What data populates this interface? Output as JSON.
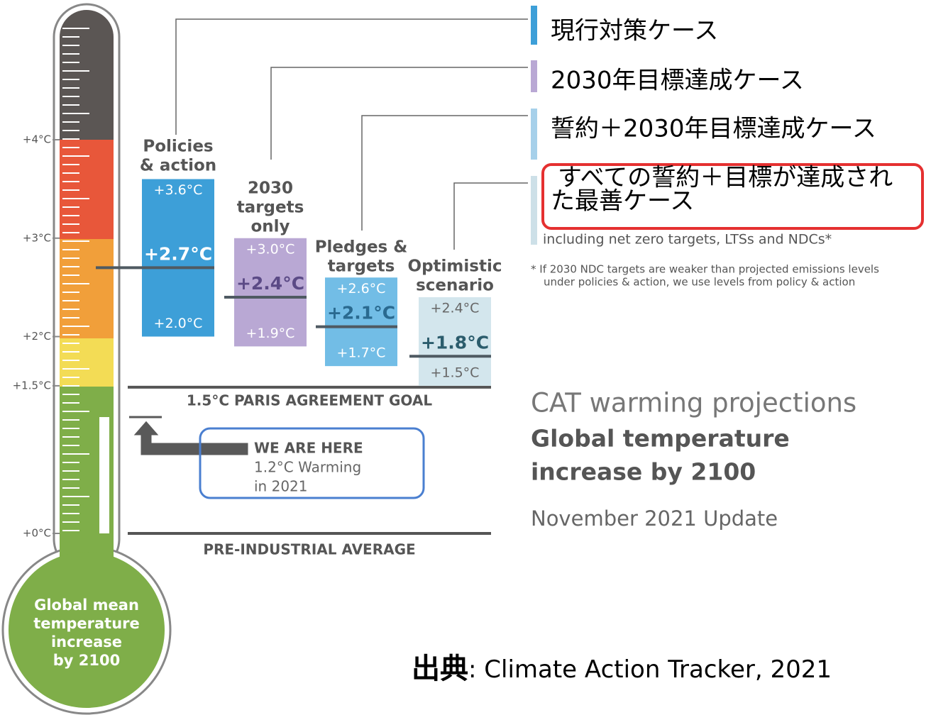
{
  "scale": {
    "ticks": [
      {
        "value": 4,
        "label": "+4°C"
      },
      {
        "value": 3,
        "label": "+3°C"
      },
      {
        "value": 2,
        "label": "+2°C"
      },
      {
        "value": 1.5,
        "label": "+1.5°C"
      },
      {
        "value": 0,
        "label": "+0°C"
      }
    ],
    "bulb_label": [
      "Global mean",
      "temperature",
      "increase",
      "by 2100"
    ]
  },
  "scenarios": [
    {
      "name": [
        "Policies",
        "& action"
      ],
      "color": "#3d9fd8",
      "text_color": "#ffffff",
      "mid_color": "#ffffff",
      "high": {
        "value": 3.6,
        "label": "+3.6°C"
      },
      "mid": {
        "value": 2.7,
        "label": "+2.7°C"
      },
      "low": {
        "value": 2.0,
        "label": "+2.0°C"
      },
      "legend": [
        "現行対策ケース"
      ],
      "legend_color": "#3d9fd8"
    },
    {
      "name": [
        "2030",
        "targets",
        "only"
      ],
      "color": "#b9a8d4",
      "text_color": "#ffffff",
      "mid_color": "#5b4a86",
      "high": {
        "value": 3.0,
        "label": "+3.0°C"
      },
      "mid": {
        "value": 2.4,
        "label": "+2.4°C"
      },
      "low": {
        "value": 1.9,
        "label": "+1.9°C"
      },
      "legend": [
        "2030年目標達成ケース"
      ],
      "legend_color": "#b9a8d4"
    },
    {
      "name": [
        "Pledges &",
        "targets"
      ],
      "color": "#72bde6",
      "text_color": "#ffffff",
      "mid_color": "#2a6a90",
      "high": {
        "value": 2.6,
        "label": "+2.6°C"
      },
      "mid": {
        "value": 2.1,
        "label": "+2.1°C"
      },
      "low": {
        "value": 1.7,
        "label": "+1.7°C"
      },
      "legend": [
        "誓約＋2030年目標達成ケース"
      ],
      "legend_color": "#a6d0ea"
    },
    {
      "name": [
        "Optimistic",
        "scenario"
      ],
      "color": "#d3e6ed",
      "text_color": "#666666",
      "mid_color": "#2b5c6c",
      "high": {
        "value": 2.4,
        "label": "+2.4°C"
      },
      "mid": {
        "value": 1.8,
        "label": "+1.8°C"
      },
      "low": {
        "value": 1.5,
        "label": "+1.5°C"
      },
      "legend": [
        "すべての誓約＋目標が達成され",
        "た最善ケース"
      ],
      "legend_color": "#cde0e8"
    }
  ],
  "legend_note": "including net zero targets, LTSs and NDCs*",
  "footnote": [
    "* If 2030 NDC targets are weaker than projected emissions levels",
    "under policies & action, we use levels from policy & action"
  ],
  "goal_label": "1.5°C PARIS AGREEMENT GOAL",
  "baseline_label": "PRE-INDUSTRIAL AVERAGE",
  "current": {
    "heading": "WE ARE HERE",
    "lines": [
      "1.2°C Warming",
      "in 2021"
    ]
  },
  "title": {
    "kicker": "CAT warming projections",
    "main": [
      "Global temperature",
      "increase by 2100"
    ],
    "update": "November 2021 Update"
  },
  "source": {
    "label": "出典",
    "text": ": Climate Action Tracker, 2021"
  }
}
